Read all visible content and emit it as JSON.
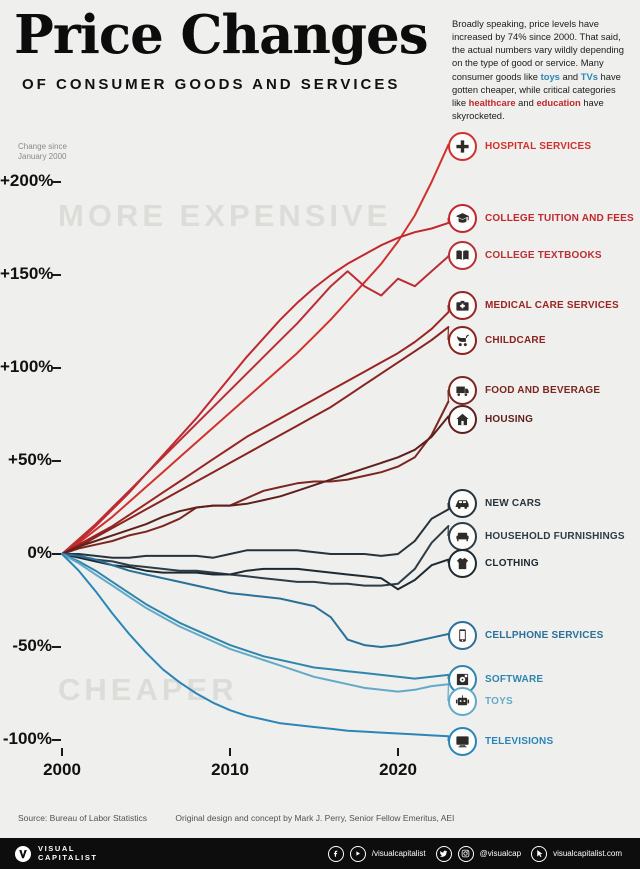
{
  "colors": {
    "background": "#efefed",
    "text_red": "#c1272d",
    "text_blue": "#2e86b5",
    "ghost": "#dcdcd9",
    "footer": "#0d0d0d"
  },
  "header": {
    "title": "Price Changes",
    "subtitle": "OF CONSUMER GOODS AND SERVICES",
    "intro_segments": [
      {
        "text": "Broadly speaking, price levels have increased by 74% since 2000. That said, the actual numbers vary wildly depending on the type of good or service. Many consumer goods like "
      },
      {
        "text": "toys",
        "color": "blue"
      },
      {
        "text": " and "
      },
      {
        "text": "TVs",
        "color": "blue"
      },
      {
        "text": " have gotten cheaper, while critical categories like "
      },
      {
        "text": "healthcare",
        "color": "red"
      },
      {
        "text": " and "
      },
      {
        "text": "education",
        "color": "red"
      },
      {
        "text": " have skyrocketed."
      }
    ]
  },
  "chart_data": {
    "type": "line",
    "note": "Change since\nJanuary 2000",
    "ylim": [
      -105,
      235
    ],
    "x_years": [
      2000,
      2001,
      2002,
      2003,
      2004,
      2005,
      2006,
      2007,
      2008,
      2009,
      2010,
      2011,
      2012,
      2013,
      2014,
      2015,
      2016,
      2017,
      2018,
      2019,
      2020,
      2021,
      2022,
      2023
    ],
    "yticks": [
      {
        "label": "+200%",
        "value": 200
      },
      {
        "label": "+150%",
        "value": 150
      },
      {
        "label": "+100%",
        "value": 100
      },
      {
        "label": "+50%",
        "value": 50
      },
      {
        "label": "0%",
        "value": 0
      },
      {
        "label": "-50%",
        "value": -50
      },
      {
        "label": "-100%",
        "value": -100
      }
    ],
    "xticks": [
      {
        "label": "2000",
        "value": 2000
      },
      {
        "label": "2010",
        "value": 2010
      },
      {
        "label": "2020",
        "value": 2020
      }
    ],
    "annotations": [
      {
        "text": "MORE EXPENSIVE"
      },
      {
        "text": "CHEAPER"
      }
    ],
    "series": [
      {
        "id": "hospital-services",
        "label": "HOSPITAL SERVICES",
        "color": "#d0312d",
        "icon": "hospital",
        "values": [
          0,
          6,
          13,
          20,
          28,
          36,
          44,
          52,
          60,
          68,
          76,
          84,
          92,
          100,
          108,
          117,
          126,
          136,
          146,
          156,
          168,
          182,
          200,
          220
        ]
      },
      {
        "id": "college-tuition-and-fees",
        "label": "COLLEGE TUITION AND FEES",
        "color": "#c1272d",
        "icon": "graduation-cap",
        "values": [
          0,
          7,
          15,
          24,
          33,
          43,
          53,
          63,
          73,
          84,
          95,
          106,
          116,
          126,
          135,
          143,
          150,
          156,
          161,
          166,
          170,
          173,
          175,
          178
        ]
      },
      {
        "id": "college-textbooks",
        "label": "COLLEGE TEXTBOOKS",
        "color": "#b92f35",
        "icon": "book",
        "values": [
          0,
          8,
          16,
          25,
          34,
          43,
          52,
          61,
          70,
          79,
          88,
          97,
          106,
          115,
          124,
          134,
          144,
          152,
          144,
          139,
          148,
          144,
          152,
          160
        ]
      },
      {
        "id": "medical-care-services",
        "label": "MEDICAL CARE SERVICES",
        "color": "#9a2421",
        "icon": "medical-bag",
        "values": [
          0,
          5,
          10,
          15,
          21,
          27,
          33,
          39,
          45,
          51,
          57,
          63,
          68,
          73,
          78,
          83,
          88,
          93,
          98,
          103,
          108,
          114,
          121,
          130
        ]
      },
      {
        "id": "childcare",
        "label": "CHILDCARE",
        "color": "#8a2320",
        "icon": "stroller",
        "values": [
          0,
          4,
          9,
          14,
          19,
          24,
          29,
          34,
          39,
          44,
          49,
          54,
          59,
          64,
          69,
          74,
          79,
          85,
          91,
          97,
          103,
          109,
          115,
          122
        ]
      },
      {
        "id": "food-and-beverage",
        "label": "FOOD AND BEVERAGE",
        "color": "#7c2622",
        "icon": "food-truck",
        "values": [
          0,
          3,
          5,
          7,
          10,
          12,
          15,
          19,
          25,
          26,
          26,
          30,
          34,
          36,
          38,
          39,
          39,
          40,
          42,
          44,
          47,
          52,
          64,
          82
        ]
      },
      {
        "id": "housing",
        "label": "HOUSING",
        "color": "#5f201d",
        "icon": "house",
        "values": [
          0,
          4,
          7,
          10,
          13,
          16,
          20,
          23,
          25,
          26,
          26,
          27,
          29,
          31,
          34,
          37,
          40,
          43,
          46,
          49,
          52,
          56,
          63,
          74
        ]
      },
      {
        "id": "new-cars",
        "label": "NEW CARS",
        "color": "#27333c",
        "icon": "car",
        "values": [
          0,
          0,
          -1,
          -2,
          -2,
          -1,
          -1,
          -1,
          -1,
          -2,
          0,
          2,
          2,
          2,
          2,
          1,
          0,
          0,
          0,
          -1,
          0,
          7,
          19,
          24
        ]
      },
      {
        "id": "household-furnishings",
        "label": "HOUSEHOLD FURNISHINGS",
        "color": "#2e3c46",
        "icon": "couch",
        "values": [
          0,
          -1,
          -3,
          -4,
          -6,
          -7,
          -8,
          -9,
          -9,
          -10,
          -11,
          -12,
          -13,
          -14,
          -15,
          -15,
          -16,
          -16,
          -17,
          -17,
          -16,
          -8,
          6,
          15
        ]
      },
      {
        "id": "clothing",
        "label": "CLOTHING",
        "color": "#1e2a32",
        "icon": "shirt",
        "values": [
          0,
          -2,
          -4,
          -6,
          -7,
          -9,
          -10,
          -10,
          -10,
          -11,
          -11,
          -9,
          -8,
          -8,
          -8,
          -9,
          -10,
          -11,
          -12,
          -13,
          -19,
          -14,
          -6,
          -3
        ]
      },
      {
        "id": "cellphone-services",
        "label": "CELLPHONE SERVICES",
        "color": "#2a7099",
        "icon": "phone",
        "values": [
          0,
          -1,
          -3,
          -6,
          -9,
          -11,
          -13,
          -15,
          -17,
          -19,
          -21,
          -22,
          -23,
          -24,
          -26,
          -28,
          -34,
          -46,
          -49,
          -50,
          -49,
          -47,
          -45,
          -43
        ]
      },
      {
        "id": "software",
        "label": "SOFTWARE",
        "color": "#2f86ad",
        "icon": "software",
        "values": [
          0,
          -4,
          -9,
          -15,
          -21,
          -27,
          -32,
          -37,
          -41,
          -45,
          -49,
          -52,
          -55,
          -57,
          -59,
          -61,
          -62,
          -63,
          -64,
          -65,
          -66,
          -67,
          -66,
          -65
        ]
      },
      {
        "id": "toys",
        "label": "TOYS",
        "color": "#62aac8",
        "icon": "toy",
        "values": [
          0,
          -5,
          -11,
          -17,
          -23,
          -29,
          -34,
          -39,
          -43,
          -47,
          -51,
          -54,
          -57,
          -60,
          -63,
          -66,
          -68,
          -70,
          -72,
          -73,
          -74,
          -73,
          -71,
          -70
        ]
      },
      {
        "id": "televisions",
        "label": "TELEVISIONS",
        "color": "#2a86b8",
        "icon": "tv",
        "values": [
          0,
          -9,
          -20,
          -32,
          -43,
          -53,
          -62,
          -69,
          -75,
          -80,
          -84,
          -87,
          -89,
          -91,
          -92,
          -93,
          -94,
          -95,
          -95.5,
          -96,
          -96.5,
          -97,
          -97.5,
          -98
        ]
      }
    ]
  },
  "footer": {
    "source": "Source: Bureau of Labor Statistics",
    "credit": "Original design and concept by Mark J. Perry, Senior Fellow Emeritus, AEI",
    "logo_line1": "VISUAL",
    "logo_line2": "CAPITALIST",
    "socials": [
      {
        "icon": "facebook",
        "label": ""
      },
      {
        "icon": "youtube",
        "label": "/visualcapitalist"
      },
      {
        "icon": "twitter",
        "label": ""
      },
      {
        "icon": "instagram",
        "label": "@visualcap"
      },
      {
        "icon": "cursor",
        "label": "visualcapitalist.com"
      }
    ]
  }
}
